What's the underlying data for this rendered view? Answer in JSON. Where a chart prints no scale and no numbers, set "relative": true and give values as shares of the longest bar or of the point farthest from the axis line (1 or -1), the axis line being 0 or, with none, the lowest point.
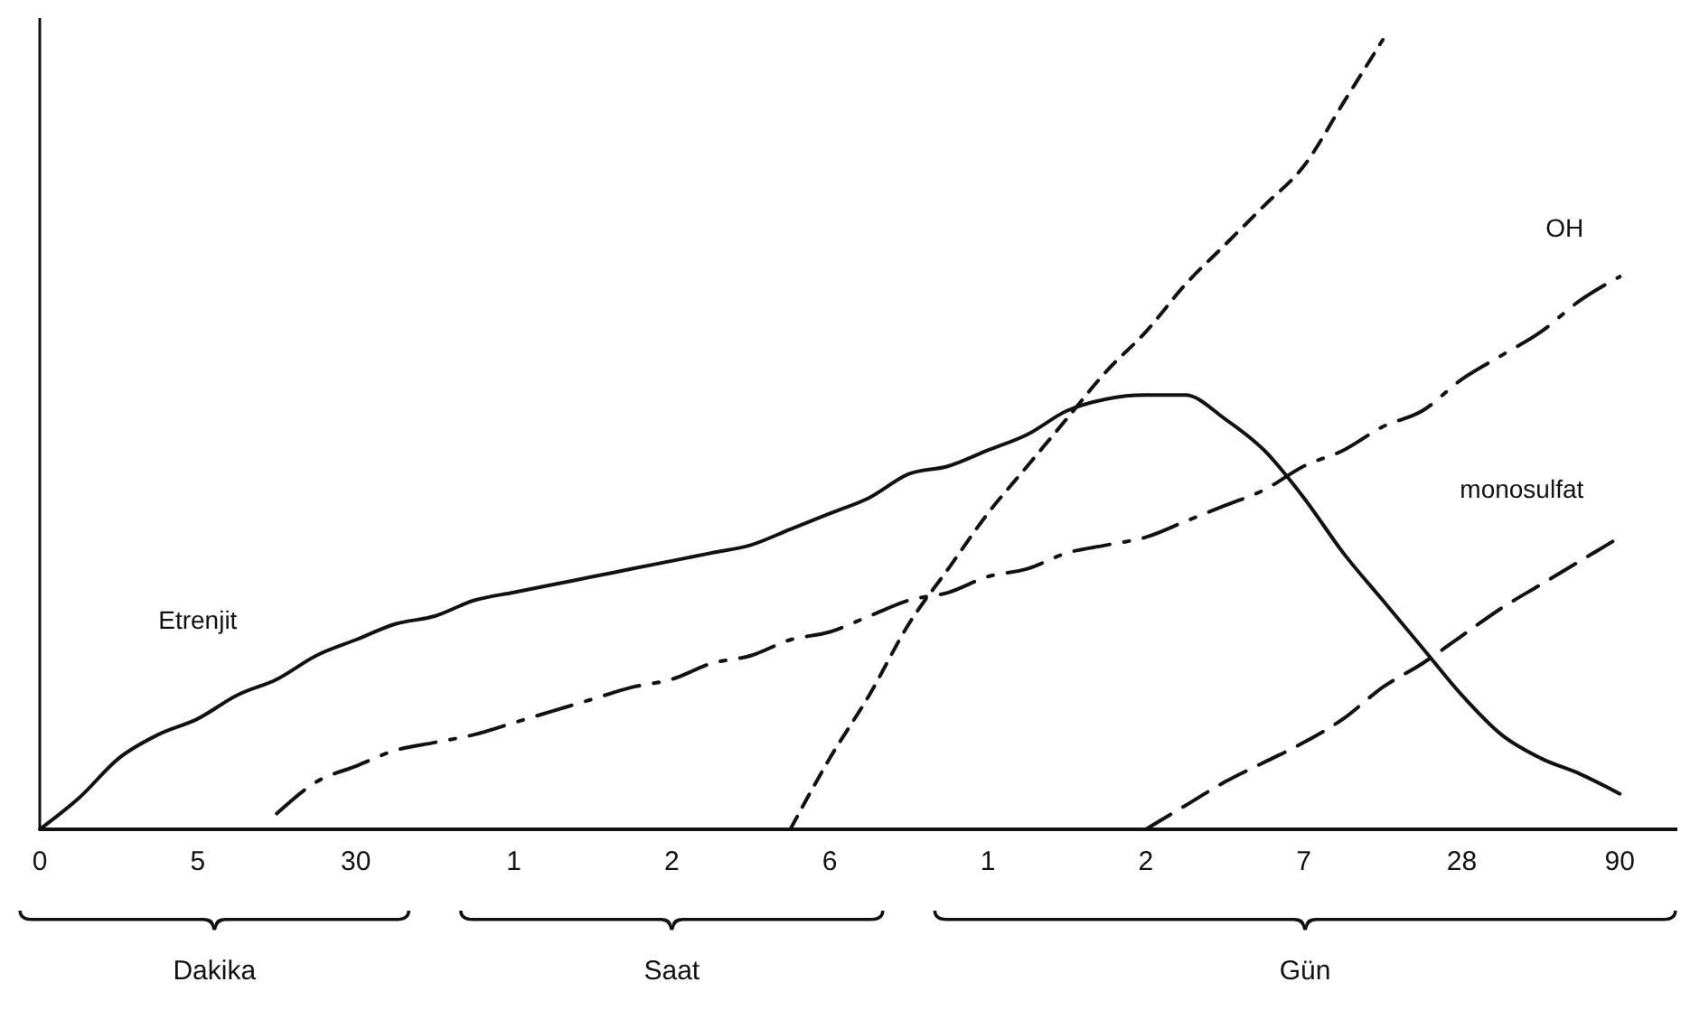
{
  "chart_data": {
    "type": "line",
    "relative": true,
    "legend": false,
    "grid": false,
    "marker": "none",
    "categories": [
      "0",
      null,
      null,
      null,
      "5",
      null,
      null,
      null,
      "30",
      null,
      null,
      null,
      "1",
      null,
      null,
      null,
      "2",
      null,
      null,
      null,
      "6",
      null,
      null,
      null,
      "1",
      null,
      null,
      null,
      "2",
      null,
      null,
      null,
      "7",
      null,
      null,
      null,
      "28",
      null,
      null,
      null,
      "90",
      null
    ],
    "annotations": [
      "Dakika",
      "Saat",
      "Gün"
    ],
    "series": [
      {
        "name": "Etrenjit",
        "color": "#111111",
        "line_style": "solid",
        "values": [
          0,
          0.04,
          0.09,
          0.12,
          0.14,
          0.17,
          0.19,
          0.22,
          0.24,
          0.26,
          0.27,
          0.29,
          0.3,
          0.31,
          0.32,
          0.33,
          0.34,
          0.35,
          0.36,
          0.38,
          0.4,
          0.42,
          0.45,
          0.46,
          0.48,
          0.5,
          0.53,
          0.545,
          0.55,
          0.55,
          0.52,
          0.48,
          0.42,
          0.35,
          0.29,
          0.23,
          0.17,
          0.12,
          0.09,
          0.07,
          0.045,
          null
        ]
      },
      {
        "name": "OH",
        "color": "#111111",
        "line_style": "dashdot",
        "values": [
          null,
          null,
          null,
          null,
          null,
          null,
          0.02,
          0.06,
          0.08,
          0.1,
          0.11,
          0.12,
          0.135,
          0.15,
          0.165,
          0.18,
          0.19,
          0.21,
          0.22,
          0.24,
          0.25,
          0.27,
          0.29,
          0.3,
          0.32,
          0.33,
          0.35,
          0.36,
          0.37,
          0.39,
          0.41,
          0.43,
          0.46,
          0.48,
          0.51,
          0.53,
          0.57,
          0.6,
          0.63,
          0.67,
          0.7,
          null
        ]
      },
      {
        "color": "#111111",
        "line_style": "dotted",
        "values": [
          null,
          null,
          null,
          null,
          null,
          null,
          null,
          null,
          null,
          null,
          null,
          null,
          null,
          null,
          null,
          null,
          null,
          null,
          null,
          0,
          0.09,
          0.17,
          0.26,
          0.33,
          0.4,
          0.46,
          0.52,
          0.58,
          0.63,
          0.69,
          0.74,
          0.79,
          0.84,
          0.92,
          1,
          null,
          null,
          null,
          null,
          null,
          null,
          null
        ]
      },
      {
        "name": "monosulfat",
        "color": "#111111",
        "line_style": "dashed",
        "values": [
          null,
          null,
          null,
          null,
          null,
          null,
          null,
          null,
          null,
          null,
          null,
          null,
          null,
          null,
          null,
          null,
          null,
          null,
          null,
          null,
          null,
          null,
          null,
          null,
          null,
          null,
          null,
          null,
          0,
          0.03,
          0.06,
          0.085,
          0.11,
          0.14,
          0.18,
          0.21,
          0.245,
          0.28,
          0.31,
          0.34,
          0.37,
          null
        ]
      }
    ]
  }
}
